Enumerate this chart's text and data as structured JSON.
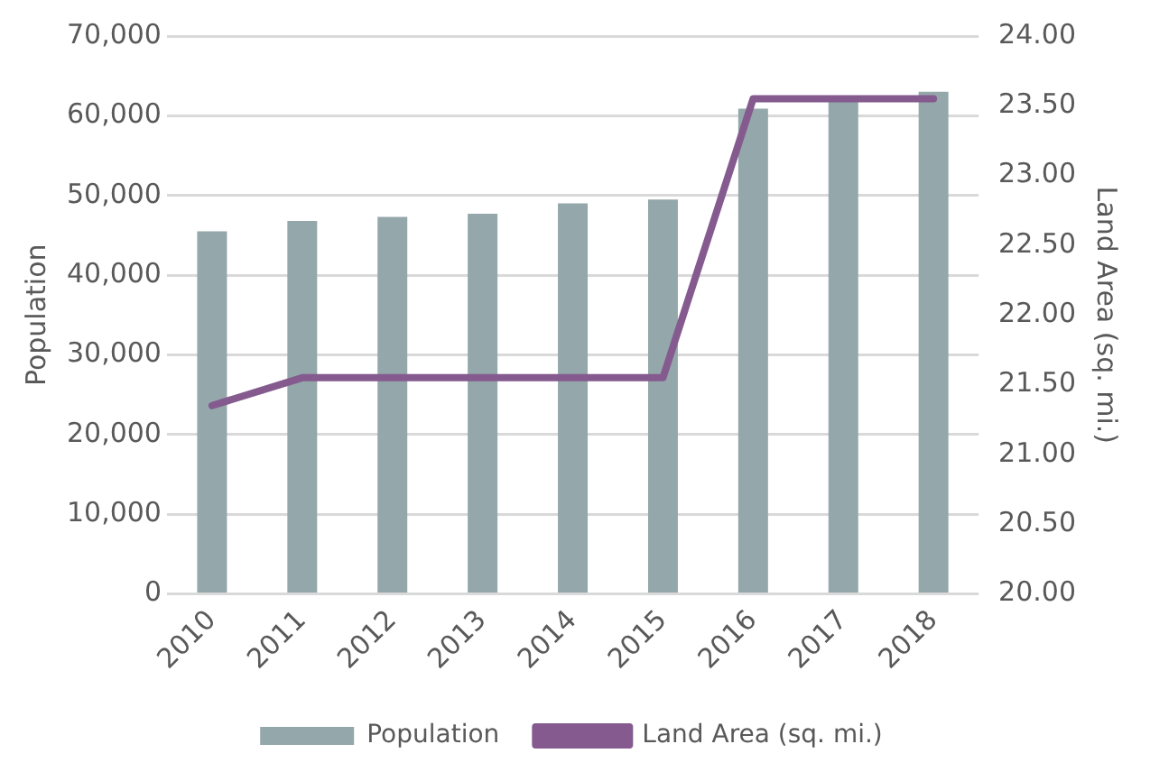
{
  "chart_data": {
    "type": "bar",
    "categories": [
      "2010",
      "2011",
      "2012",
      "2013",
      "2014",
      "2015",
      "2016",
      "2017",
      "2018"
    ],
    "series": [
      {
        "name": "Population",
        "color": "#94a7aa",
        "values": [
          45500,
          46800,
          47300,
          47700,
          49000,
          49500,
          60900,
          62000,
          63000
        ]
      },
      {
        "name": "Land Area (sq. mi.)",
        "type": "line",
        "axis": "y2",
        "color": "#845a8f",
        "values": [
          21.35,
          21.55,
          21.55,
          21.55,
          21.55,
          21.55,
          23.55,
          23.55,
          23.55
        ]
      }
    ],
    "ylabel": "Population",
    "y2label": "Land Area (sq. mi.)",
    "ylim": [
      0,
      70000
    ],
    "yticks": [
      {
        "value": 0,
        "label": "0"
      },
      {
        "value": 10000,
        "label": "10,000"
      },
      {
        "value": 20000,
        "label": "20,000"
      },
      {
        "value": 30000,
        "label": "30,000"
      },
      {
        "value": 40000,
        "label": "40,000"
      },
      {
        "value": 50000,
        "label": "50,000"
      },
      {
        "value": 60000,
        "label": "60,000"
      },
      {
        "value": 70000,
        "label": "70,000"
      }
    ],
    "y2lim": [
      20,
      24
    ],
    "y2ticks": [
      {
        "value": 20,
        "label": "20.00"
      },
      {
        "value": 20.5,
        "label": "20.50"
      },
      {
        "value": 21,
        "label": "21.00"
      },
      {
        "value": 21.5,
        "label": "21.50"
      },
      {
        "value": 22,
        "label": "22.00"
      },
      {
        "value": 22.5,
        "label": "22.50"
      },
      {
        "value": 23,
        "label": "23.00"
      },
      {
        "value": 23.5,
        "label": "23.50"
      },
      {
        "value": 24,
        "label": "24.00"
      }
    ],
    "grid": "y",
    "legend": "bottom",
    "marker": "none"
  }
}
